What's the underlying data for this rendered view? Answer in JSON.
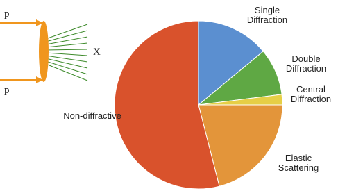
{
  "chart_data": {
    "type": "pie",
    "categories": [
      "Single Diffraction",
      "Double Diffraction",
      "Central Diffraction",
      "Elastic Scattering",
      "Non-diffractive"
    ],
    "values": [
      14,
      9,
      2,
      21,
      54
    ],
    "colors": [
      "#5b8fd0",
      "#5fa844",
      "#e6cf46",
      "#e3953a",
      "#d9522c"
    ]
  },
  "diagram": {
    "beam_labels": [
      "p",
      "p"
    ],
    "final_state": "X"
  }
}
